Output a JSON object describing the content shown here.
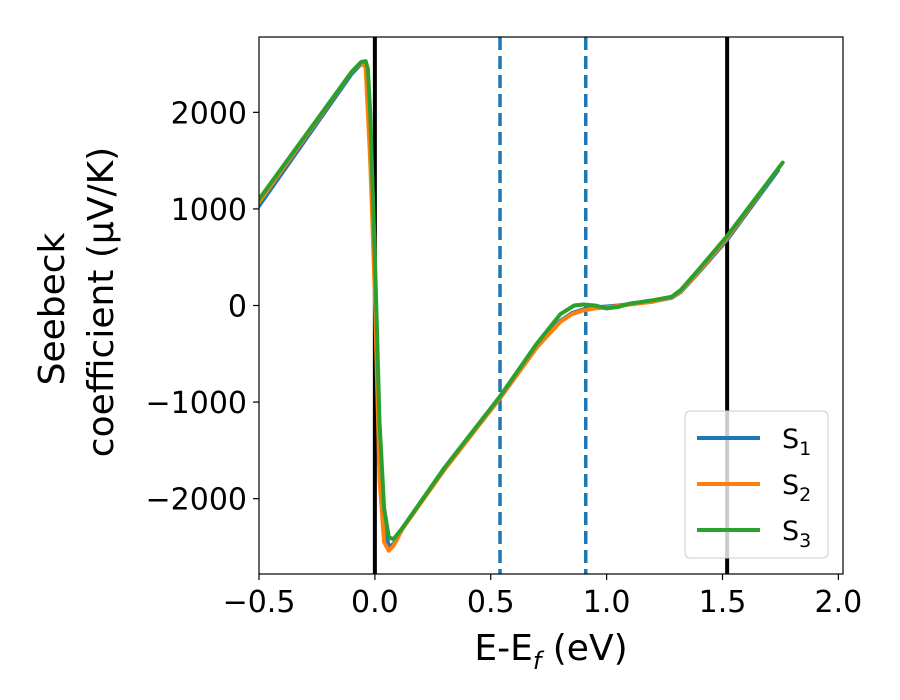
{
  "chart_data": {
    "type": "line",
    "xlabel": "E-E",
    "xlabel_sub": "f",
    "xlabel_unit": " (eV)",
    "ylabel_line1": "Seebeck",
    "ylabel_line2": "coefficient  (μV/K)",
    "xlim": [
      -0.5,
      2.02
    ],
    "ylim": [
      -2780,
      2780
    ],
    "xticks": [
      -0.5,
      0.0,
      0.5,
      1.0,
      1.5,
      2.0
    ],
    "xtick_labels": [
      "−0.5",
      "0.0",
      "0.5",
      "1.0",
      "1.5",
      "2.0"
    ],
    "yticks": [
      -2000,
      -1000,
      0,
      1000,
      2000
    ],
    "ytick_labels": [
      "−2000",
      "−1000",
      "0",
      "1000",
      "2000"
    ],
    "grid": false,
    "legend_position": "bottom-right",
    "vertical_lines": [
      {
        "x": 0.0,
        "style": "solid",
        "color": "#000000"
      },
      {
        "x": 1.52,
        "style": "solid",
        "color": "#000000"
      },
      {
        "x": 0.54,
        "style": "dashed",
        "color": "#1f77b4"
      },
      {
        "x": 0.91,
        "style": "dashed",
        "color": "#1f77b4"
      }
    ],
    "series": [
      {
        "name": "S",
        "subscript": "1",
        "color": "#1f77b4",
        "x": [
          -0.5,
          -0.1,
          -0.06,
          -0.04,
          -0.02,
          0.0,
          0.02,
          0.04,
          0.06,
          0.08,
          0.12,
          0.3,
          0.54,
          0.7,
          0.8,
          0.85,
          0.9,
          0.95,
          1.0,
          1.05,
          1.1,
          1.2,
          1.28,
          1.32,
          1.4,
          1.52,
          1.74
        ],
        "y": [
          1030,
          2400,
          2500,
          2490,
          1700,
          400,
          -1500,
          -2250,
          -2500,
          -2470,
          -2300,
          -1700,
          -960,
          -430,
          -160,
          -80,
          -40,
          -20,
          -10,
          0,
          15,
          40,
          80,
          140,
          350,
          680,
          1400
        ]
      },
      {
        "name": "S",
        "subscript": "2",
        "color": "#ff7f0e",
        "x": [
          -0.5,
          -0.1,
          -0.06,
          -0.04,
          -0.02,
          0.0,
          0.02,
          0.04,
          0.06,
          0.08,
          0.12,
          0.3,
          0.54,
          0.7,
          0.8,
          0.85,
          0.9,
          0.95,
          1.0,
          1.05,
          1.1,
          1.2,
          1.28,
          1.32,
          1.4,
          1.52,
          1.75
        ],
        "y": [
          1070,
          2420,
          2510,
          2470,
          1500,
          100,
          -1800,
          -2450,
          -2540,
          -2490,
          -2310,
          -1700,
          -960,
          -430,
          -170,
          -90,
          -50,
          -30,
          -20,
          -5,
          10,
          40,
          85,
          145,
          360,
          700,
          1450
        ]
      },
      {
        "name": "S",
        "subscript": "3",
        "color": "#2ca02c",
        "x": [
          -0.5,
          -0.1,
          -0.06,
          -0.04,
          -0.03,
          -0.02,
          0.0,
          0.02,
          0.04,
          0.06,
          0.08,
          0.12,
          0.3,
          0.54,
          0.7,
          0.8,
          0.86,
          0.9,
          0.95,
          1.0,
          1.05,
          1.1,
          1.2,
          1.28,
          1.32,
          1.4,
          1.52,
          1.76
        ],
        "y": [
          1100,
          2420,
          2520,
          2530,
          2450,
          2000,
          500,
          -1200,
          -2100,
          -2400,
          -2420,
          -2300,
          -1680,
          -940,
          -390,
          -90,
          0,
          10,
          0,
          -30,
          -15,
          20,
          55,
          90,
          160,
          380,
          720,
          1480
        ]
      }
    ]
  }
}
